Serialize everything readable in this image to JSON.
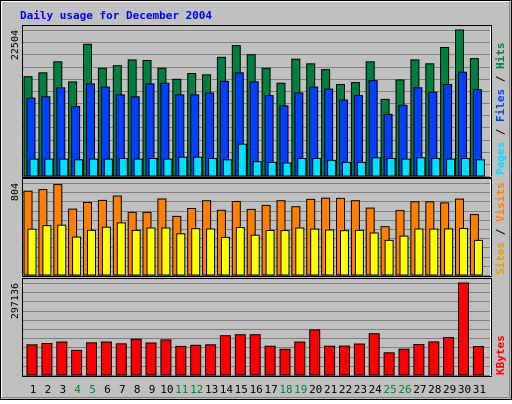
{
  "colors": {
    "background": "#c0c0c0",
    "panel": "#c0c0c0",
    "title": "#0000ff",
    "hits": "#008040",
    "files": "#0040ff",
    "pages": "#00e0ff",
    "visits": "#ff8000",
    "sites": "#ffff00",
    "kbytes": "#ff0000",
    "weekday_label": "#000000",
    "weekend_label": "#008040"
  },
  "chart_data": [
    {
      "type": "bar",
      "title": "Daily usage for December 2004",
      "categories": [
        "1",
        "2",
        "3",
        "4",
        "5",
        "6",
        "7",
        "8",
        "9",
        "10",
        "11",
        "12",
        "13",
        "14",
        "15",
        "16",
        "17",
        "18",
        "19",
        "20",
        "21",
        "22",
        "23",
        "24",
        "25",
        "26",
        "27",
        "28",
        "29",
        "30",
        "31"
      ],
      "weekend_days": [
        "4",
        "5",
        "11",
        "12",
        "18",
        "19",
        "25",
        "26"
      ],
      "ylim": [
        0,
        22504
      ],
      "max_tick_label": "22504",
      "grid": true,
      "series": [
        {
          "name": "Hits",
          "color": "#008040",
          "values": [
            15300,
            15900,
            17600,
            14500,
            20300,
            16600,
            17000,
            17900,
            17800,
            16600,
            14900,
            15800,
            15600,
            18300,
            20100,
            18700,
            16600,
            14300,
            18000,
            17300,
            16400,
            14100,
            14400,
            17600,
            11800,
            14800,
            17900,
            17300,
            19800,
            22504,
            18100
          ]
        },
        {
          "name": "Files",
          "color": "#0040ff",
          "values": [
            12000,
            12200,
            13600,
            10700,
            14200,
            13700,
            12500,
            12200,
            14200,
            14300,
            12500,
            12500,
            12800,
            14600,
            15900,
            14500,
            12400,
            10800,
            12800,
            13700,
            13400,
            11700,
            12400,
            14700,
            9500,
            10900,
            13600,
            12900,
            14100,
            16000,
            13300
          ]
        },
        {
          "name": "Pages",
          "color": "#00e0ff",
          "values": [
            2600,
            2600,
            2600,
            2500,
            2600,
            2600,
            2700,
            2600,
            2700,
            2600,
            2900,
            2900,
            2700,
            2500,
            4900,
            2200,
            2100,
            2000,
            2700,
            2700,
            2400,
            2100,
            2100,
            2800,
            2700,
            2600,
            2800,
            2700,
            2600,
            2700,
            2500
          ]
        }
      ]
    },
    {
      "type": "bar",
      "ylim": [
        0,
        804
      ],
      "max_tick_label": "804",
      "grid": true,
      "series": [
        {
          "name": "Visits",
          "color": "#ff8000",
          "values": [
            732,
            746,
            790,
            576,
            634,
            652,
            690,
            547,
            547,
            664,
            512,
            581,
            649,
            565,
            642,
            573,
            608,
            649,
            597,
            661,
            671,
            669,
            649,
            585,
            422,
            563,
            640,
            640,
            630,
            663,
            528
          ]
        },
        {
          "name": "Sites",
          "color": "#ffff00",
          "values": [
            400,
            431,
            435,
            331,
            390,
            418,
            455,
            390,
            411,
            411,
            360,
            405,
            402,
            329,
            414,
            348,
            389,
            388,
            411,
            401,
            393,
            387,
            390,
            367,
            302,
            340,
            402,
            401,
            403,
            406,
            302
          ]
        }
      ]
    },
    {
      "type": "bar",
      "ylim": [
        0,
        297136
      ],
      "max_tick_label": "297136",
      "grid": true,
      "series": [
        {
          "name": "KBytes",
          "color": "#ff0000",
          "values": [
            97600,
            101700,
            106500,
            79300,
            104000,
            106500,
            100900,
            115300,
            103500,
            113500,
            92500,
            96000,
            97500,
            127000,
            130100,
            130100,
            93100,
            82900,
            106600,
            145600,
            93100,
            93500,
            100000,
            133300,
            71600,
            83300,
            98500,
            106900,
            120800,
            297136,
            92000
          ]
        }
      ]
    }
  ],
  "legends": {
    "panel1": [
      "Pages",
      "Files",
      "Hits"
    ],
    "panel2": [
      "Sites",
      "Visits"
    ],
    "panel3": [
      "KBytes"
    ],
    "separator": " / "
  }
}
